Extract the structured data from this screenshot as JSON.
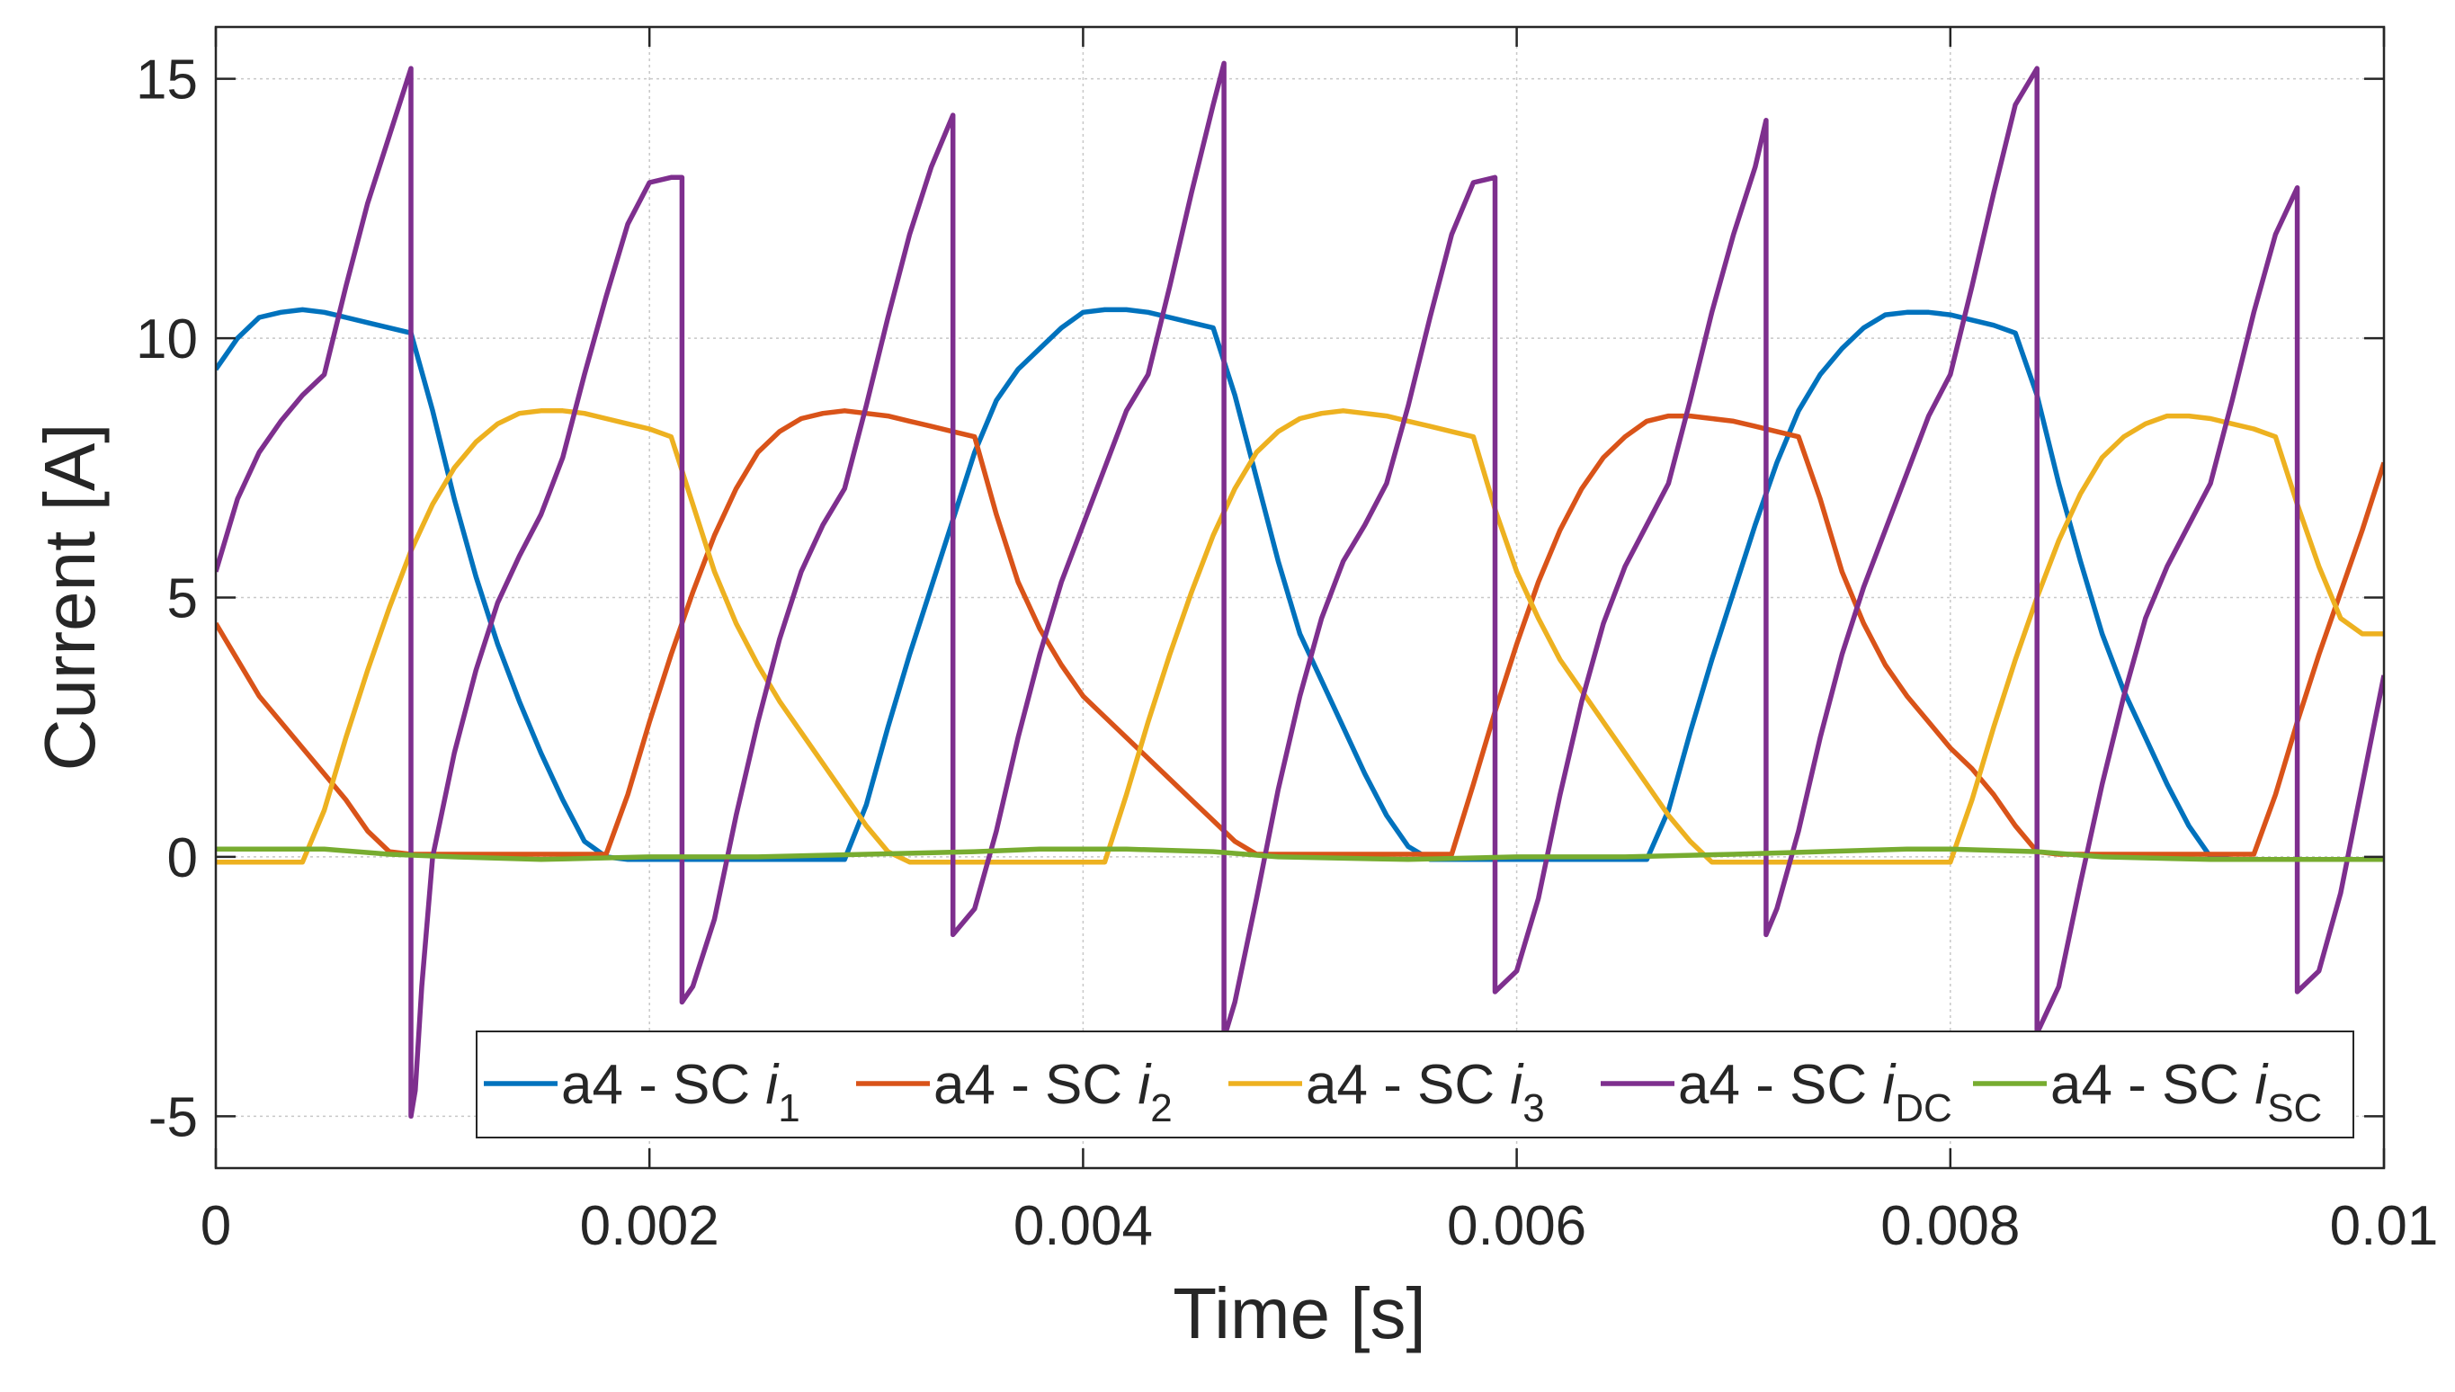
{
  "chart_data": {
    "type": "line",
    "xlabel": "Time  [s]",
    "ylabel": "Current [A]",
    "xlim": [
      0,
      0.01
    ],
    "ylim": [
      -6,
      16
    ],
    "xticks": [
      0,
      0.002,
      0.004,
      0.006,
      0.008,
      0.01
    ],
    "xtick_labels": [
      "0",
      "0.002",
      "0.004",
      "0.006",
      "0.008",
      "0.01"
    ],
    "yticks": [
      -5,
      0,
      5,
      10,
      15
    ],
    "ytick_labels": [
      "-5",
      "0",
      "5",
      "10",
      "15"
    ],
    "grid": true,
    "legend_placement": "bottom-right, single row",
    "series": [
      {
        "name": "a4 - SC i1",
        "label_main": "a4 - SC ",
        "label_var": "i",
        "label_sub": "1",
        "color": "#0072BD",
        "x": [
          0,
          0.0001,
          0.0002,
          0.0003,
          0.0004,
          0.0005,
          0.0006,
          0.0007,
          0.0008,
          0.0009,
          0.001,
          0.0011,
          0.0012,
          0.0013,
          0.0014,
          0.0015,
          0.0016,
          0.0017,
          0.0018,
          0.0019,
          0.002,
          0.0021,
          0.0025,
          0.0029,
          0.003,
          0.0031,
          0.0032,
          0.0033,
          0.0034,
          0.0035,
          0.0036,
          0.0037,
          0.0038,
          0.0039,
          0.004,
          0.0041,
          0.0042,
          0.0043,
          0.0044,
          0.0045,
          0.0046,
          0.0047,
          0.0048,
          0.0049,
          0.005,
          0.0051,
          0.0052,
          0.0053,
          0.0054,
          0.0055,
          0.0056,
          0.0057,
          0.0058,
          0.0062,
          0.0066,
          0.0067,
          0.0068,
          0.0069,
          0.007,
          0.0071,
          0.0072,
          0.0073,
          0.0074,
          0.0075,
          0.0076,
          0.0077,
          0.0078,
          0.0079,
          0.008,
          0.0081,
          0.0082,
          0.0083,
          0.0084,
          0.0085,
          0.0086,
          0.0087,
          0.0088,
          0.0089,
          0.009,
          0.0091,
          0.0092,
          0.0093,
          0.0094,
          0.0095,
          0.0097,
          0.01
        ],
        "y": [
          9.4,
          10.0,
          10.4,
          10.5,
          10.55,
          10.5,
          10.4,
          10.3,
          10.2,
          10.1,
          8.6,
          6.9,
          5.4,
          4.1,
          3.0,
          2.0,
          1.1,
          0.3,
          0.0,
          -0.05,
          -0.05,
          -0.05,
          -0.05,
          -0.05,
          1.0,
          2.5,
          3.9,
          5.2,
          6.5,
          7.8,
          8.8,
          9.4,
          9.8,
          10.2,
          10.5,
          10.55,
          10.55,
          10.5,
          10.4,
          10.3,
          10.2,
          8.9,
          7.3,
          5.7,
          4.3,
          3.4,
          2.5,
          1.6,
          0.8,
          0.2,
          -0.05,
          -0.05,
          -0.05,
          -0.05,
          -0.05,
          0.9,
          2.4,
          3.8,
          5.1,
          6.4,
          7.6,
          8.6,
          9.3,
          9.8,
          10.2,
          10.45,
          10.5,
          10.5,
          10.45,
          10.35,
          10.25,
          10.1,
          8.9,
          7.2,
          5.7,
          4.3,
          3.2,
          2.3,
          1.4,
          0.6,
          0.0,
          -0.05,
          -0.05,
          -0.05,
          -0.05,
          -0.05
        ]
      },
      {
        "name": "a4 - SC i2",
        "label_main": "a4 - SC ",
        "label_var": "i",
        "label_sub": "2",
        "color": "#D95319",
        "x": [
          0,
          0.0001,
          0.0002,
          0.0003,
          0.0004,
          0.0005,
          0.0006,
          0.0007,
          0.0008,
          0.0009,
          0.0013,
          0.0017,
          0.0018,
          0.0019,
          0.002,
          0.0021,
          0.0022,
          0.0023,
          0.0024,
          0.0025,
          0.0026,
          0.0027,
          0.0028,
          0.0029,
          0.003,
          0.0031,
          0.0032,
          0.0033,
          0.0034,
          0.0035,
          0.0036,
          0.0037,
          0.0038,
          0.0039,
          0.004,
          0.0041,
          0.0042,
          0.0043,
          0.0044,
          0.0045,
          0.0046,
          0.0047,
          0.0048,
          0.005,
          0.0054,
          0.0055,
          0.0056,
          0.0057,
          0.0058,
          0.0059,
          0.006,
          0.0061,
          0.0062,
          0.0063,
          0.0064,
          0.0065,
          0.0066,
          0.0067,
          0.0068,
          0.0069,
          0.007,
          0.0071,
          0.0072,
          0.0073,
          0.0074,
          0.0075,
          0.0076,
          0.0077,
          0.0078,
          0.0079,
          0.008,
          0.0081,
          0.0082,
          0.0083,
          0.0084,
          0.0085,
          0.0087,
          0.0092,
          0.0093,
          0.0094,
          0.0095,
          0.0096,
          0.0097,
          0.0098,
          0.0099,
          0.01
        ],
        "y": [
          4.5,
          3.8,
          3.1,
          2.6,
          2.1,
          1.6,
          1.1,
          0.5,
          0.1,
          0.05,
          0.05,
          0.05,
          0.05,
          1.2,
          2.6,
          3.9,
          5.1,
          6.2,
          7.1,
          7.8,
          8.2,
          8.45,
          8.55,
          8.6,
          8.55,
          8.5,
          8.4,
          8.3,
          8.2,
          8.1,
          6.6,
          5.3,
          4.4,
          3.7,
          3.1,
          2.7,
          2.3,
          1.9,
          1.5,
          1.1,
          0.7,
          0.3,
          0.05,
          0.05,
          0.05,
          0.05,
          0.05,
          0.05,
          1.4,
          2.8,
          4.1,
          5.3,
          6.3,
          7.1,
          7.7,
          8.1,
          8.4,
          8.5,
          8.5,
          8.45,
          8.4,
          8.3,
          8.2,
          8.1,
          6.9,
          5.5,
          4.5,
          3.7,
          3.1,
          2.6,
          2.1,
          1.7,
          1.2,
          0.6,
          0.1,
          0.05,
          0.05,
          0.05,
          0.05,
          0.05,
          1.2,
          2.6,
          3.9,
          5.1,
          6.3,
          7.6
        ]
      },
      {
        "name": "a4 - SC i3",
        "label_main": "a4 - SC ",
        "label_var": "i",
        "label_sub": "3",
        "color": "#EDB120",
        "x": [
          0,
          0.0002,
          0.0004,
          0.0005,
          0.0006,
          0.0007,
          0.0008,
          0.0009,
          0.001,
          0.0011,
          0.0012,
          0.0013,
          0.0014,
          0.0015,
          0.0016,
          0.0017,
          0.0018,
          0.0019,
          0.002,
          0.0021,
          0.0022,
          0.0023,
          0.0024,
          0.0025,
          0.0026,
          0.0027,
          0.0028,
          0.0029,
          0.003,
          0.0031,
          0.0032,
          0.0033,
          0.0034,
          0.0036,
          0.0038,
          0.0041,
          0.0042,
          0.0043,
          0.0044,
          0.0045,
          0.0046,
          0.0047,
          0.0048,
          0.0049,
          0.005,
          0.0051,
          0.0052,
          0.0053,
          0.0054,
          0.0055,
          0.0056,
          0.0057,
          0.0058,
          0.0059,
          0.006,
          0.0061,
          0.0062,
          0.0063,
          0.0064,
          0.0065,
          0.0066,
          0.0067,
          0.0068,
          0.0069,
          0.007,
          0.0071,
          0.0072,
          0.0076,
          0.008,
          0.0081,
          0.0082,
          0.0083,
          0.0084,
          0.0085,
          0.0086,
          0.0087,
          0.0088,
          0.0089,
          0.009,
          0.0091,
          0.0092,
          0.0093,
          0.0094,
          0.0095,
          0.0096,
          0.0097,
          0.0098,
          0.0099,
          0.01
        ],
        "y": [
          -0.1,
          -0.1,
          -0.1,
          0.9,
          2.3,
          3.6,
          4.8,
          5.9,
          6.8,
          7.5,
          8.0,
          8.35,
          8.55,
          8.6,
          8.6,
          8.55,
          8.45,
          8.35,
          8.25,
          8.1,
          6.8,
          5.5,
          4.5,
          3.7,
          3.0,
          2.4,
          1.8,
          1.2,
          0.6,
          0.1,
          -0.1,
          -0.1,
          -0.1,
          -0.1,
          -0.1,
          -0.1,
          1.2,
          2.6,
          3.9,
          5.1,
          6.2,
          7.1,
          7.8,
          8.2,
          8.45,
          8.55,
          8.6,
          8.55,
          8.5,
          8.4,
          8.3,
          8.2,
          8.1,
          6.7,
          5.5,
          4.6,
          3.8,
          3.2,
          2.6,
          2.0,
          1.4,
          0.8,
          0.3,
          -0.1,
          -0.1,
          -0.1,
          -0.1,
          -0.1,
          -0.1,
          1.1,
          2.5,
          3.8,
          5.0,
          6.1,
          7.0,
          7.7,
          8.1,
          8.35,
          8.5,
          8.5,
          8.45,
          8.35,
          8.25,
          8.1,
          6.8,
          5.6,
          4.6,
          4.3,
          4.3
        ]
      },
      {
        "name": "a4 - SC iDC",
        "label_main": "a4 - SC ",
        "label_var": "i",
        "label_sub": "DC",
        "color": "#7E2F8E",
        "x": [
          0,
          0.0001,
          0.0002,
          0.0003,
          0.0004,
          0.0005,
          0.0006,
          0.0007,
          0.0008,
          0.0009,
          0.0009,
          0.00092,
          0.00095,
          0.001,
          0.0011,
          0.0012,
          0.0013,
          0.0014,
          0.0015,
          0.0016,
          0.0017,
          0.0018,
          0.0019,
          0.002,
          0.0021,
          0.00215,
          0.00215,
          0.0022,
          0.0023,
          0.0024,
          0.0025,
          0.0026,
          0.0027,
          0.0028,
          0.0029,
          0.003,
          0.0031,
          0.0032,
          0.0033,
          0.0034,
          0.0034,
          0.0035,
          0.0036,
          0.0037,
          0.0038,
          0.0039,
          0.004,
          0.0041,
          0.0042,
          0.0043,
          0.0044,
          0.0045,
          0.0046,
          0.00465,
          0.00465,
          0.0047,
          0.0048,
          0.0049,
          0.005,
          0.0051,
          0.0052,
          0.0053,
          0.0054,
          0.0055,
          0.0056,
          0.0057,
          0.0058,
          0.0059,
          0.0059,
          0.006,
          0.0061,
          0.0062,
          0.0063,
          0.0064,
          0.0065,
          0.0066,
          0.0067,
          0.0068,
          0.0069,
          0.007,
          0.0071,
          0.00715,
          0.00715,
          0.0072,
          0.0073,
          0.0074,
          0.0075,
          0.0076,
          0.0077,
          0.0078,
          0.0079,
          0.008,
          0.0081,
          0.0082,
          0.0083,
          0.0084,
          0.0084,
          0.0085,
          0.0086,
          0.0087,
          0.0088,
          0.0089,
          0.009,
          0.0091,
          0.0092,
          0.0093,
          0.0094,
          0.0095,
          0.0096,
          0.0096,
          0.0097,
          0.0098,
          0.0099,
          0.01
        ],
        "y": [
          5.5,
          6.9,
          7.8,
          8.4,
          8.9,
          9.3,
          11.0,
          12.6,
          13.9,
          15.2,
          -5.0,
          -4.5,
          -2.5,
          0.0,
          2.0,
          3.6,
          4.9,
          5.8,
          6.6,
          7.7,
          9.3,
          10.8,
          12.2,
          13.0,
          13.1,
          13.1,
          -2.8,
          -2.5,
          -1.2,
          0.8,
          2.6,
          4.2,
          5.5,
          6.4,
          7.1,
          8.7,
          10.4,
          12.0,
          13.3,
          14.3,
          -1.5,
          -1.0,
          0.5,
          2.3,
          3.9,
          5.3,
          6.4,
          7.5,
          8.6,
          9.3,
          11.0,
          12.8,
          14.5,
          15.3,
          -3.5,
          -2.8,
          -0.8,
          1.3,
          3.1,
          4.6,
          5.7,
          6.4,
          7.2,
          8.7,
          10.4,
          12.0,
          13.0,
          13.1,
          -2.6,
          -2.2,
          -0.8,
          1.2,
          3.0,
          4.5,
          5.6,
          6.4,
          7.2,
          8.8,
          10.5,
          12.0,
          13.3,
          14.2,
          -1.5,
          -1.0,
          0.5,
          2.3,
          3.9,
          5.2,
          6.3,
          7.4,
          8.5,
          9.3,
          11.0,
          12.8,
          14.5,
          15.2,
          -3.4,
          -2.5,
          -0.5,
          1.4,
          3.1,
          4.6,
          5.6,
          6.4,
          7.2,
          8.8,
          10.5,
          12.0,
          12.9,
          -2.6,
          -2.2,
          -0.7,
          1.4,
          3.5
        ]
      },
      {
        "name": "a4 - SC iSC",
        "label_main": "a4 - SC ",
        "label_var": "i",
        "label_sub": "SC",
        "color": "#77AC30",
        "x": [
          0,
          0.0005,
          0.0008,
          0.0011,
          0.0015,
          0.002,
          0.0025,
          0.003,
          0.0035,
          0.0038,
          0.0042,
          0.0046,
          0.0049,
          0.0055,
          0.006,
          0.0065,
          0.007,
          0.0074,
          0.0078,
          0.008,
          0.0084,
          0.0087,
          0.0092,
          0.0096,
          0.01
        ],
        "y": [
          0.15,
          0.15,
          0.05,
          0.0,
          -0.05,
          0.0,
          0.0,
          0.05,
          0.1,
          0.15,
          0.15,
          0.1,
          0.0,
          -0.05,
          0.0,
          0.0,
          0.05,
          0.1,
          0.15,
          0.15,
          0.1,
          0.0,
          -0.05,
          -0.05,
          -0.05
        ]
      }
    ]
  }
}
